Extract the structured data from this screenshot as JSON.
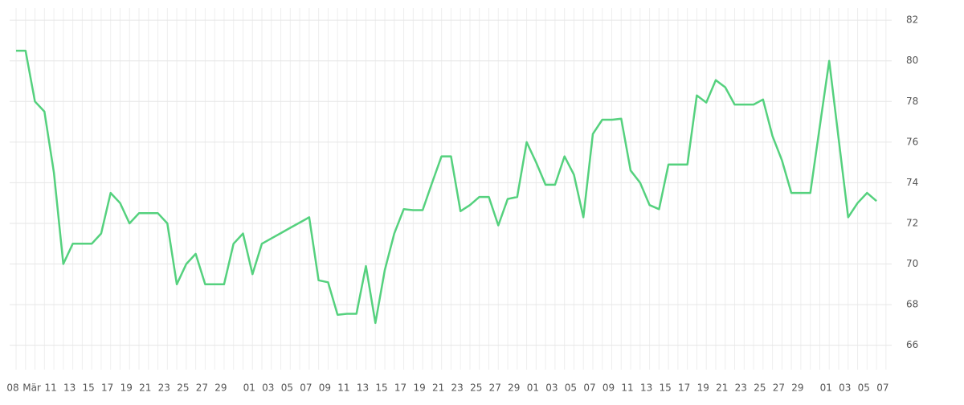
{
  "chart_data": {
    "type": "line",
    "categories": [
      "08",
      null,
      "Mär",
      null,
      "11",
      null,
      "13",
      null,
      "15",
      null,
      "17",
      null,
      "19",
      null,
      "21",
      null,
      "23",
      null,
      "25",
      null,
      "27",
      null,
      "29",
      null,
      null,
      "01",
      null,
      "03",
      null,
      "05",
      null,
      "07",
      null,
      "09",
      null,
      "11",
      null,
      "13",
      null,
      "15",
      null,
      "17",
      null,
      "19",
      null,
      "21",
      null,
      "23",
      null,
      "25",
      null,
      "27",
      null,
      "29",
      null,
      "01",
      null,
      "03",
      null,
      "05",
      null,
      "07",
      null,
      "09",
      null,
      "11",
      null,
      "13",
      null,
      "15",
      null,
      "17",
      null,
      "19",
      null,
      "21",
      null,
      "23",
      null,
      "25",
      null,
      "27",
      null,
      "29",
      null,
      null,
      "01",
      null,
      "03",
      null,
      "05",
      null,
      "07"
    ],
    "series": [
      {
        "color": "#55d17e",
        "values": [
          80.5,
          80.5,
          78.0,
          77.5,
          74.5,
          70.0,
          71.0,
          71.0,
          71.0,
          71.5,
          73.5,
          73.0,
          72.0,
          72.5,
          72.5,
          72.5,
          72.0,
          69.0,
          70.0,
          70.5,
          69.0,
          69.0,
          69.0,
          71.0,
          71.5,
          69.5,
          71.0,
          71.26,
          71.52,
          71.78,
          72.04,
          72.3,
          69.2,
          69.1,
          67.5,
          67.55,
          67.55,
          69.9,
          67.1,
          69.7,
          71.5,
          72.7,
          72.65,
          72.65,
          74.0,
          75.3,
          75.3,
          72.6,
          72.9,
          73.3,
          73.3,
          71.9,
          73.2,
          73.3,
          76.0,
          75.0,
          73.9,
          73.9,
          75.3,
          74.4,
          72.3,
          76.4,
          77.1,
          77.1,
          77.15,
          74.6,
          74.0,
          72.9,
          72.7,
          74.9,
          74.9,
          74.9,
          78.3,
          77.95,
          79.05,
          78.7,
          77.85,
          77.85,
          77.85,
          78.1,
          76.3,
          75.1,
          73.5,
          73.5,
          73.5,
          76.75,
          80.0,
          76.15,
          72.3,
          73.0,
          73.5,
          73.1,
          null
        ]
      }
    ],
    "ylim": [
      64.8,
      82.6
    ],
    "yticks": [
      66,
      68,
      70,
      72,
      74,
      76,
      78,
      80,
      82
    ],
    "grid": true
  }
}
